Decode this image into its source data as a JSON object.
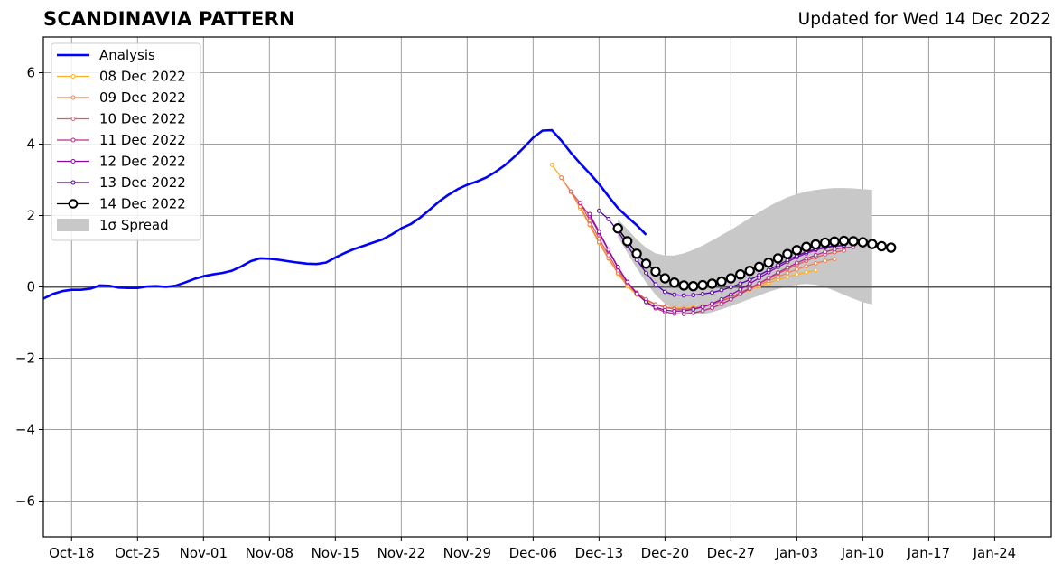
{
  "header": {
    "title": "SCANDINAVIA PATTERN",
    "updated": "Updated for Wed 14 Dec 2022"
  },
  "chart_data": {
    "type": "line",
    "title": "SCANDINAVIA PATTERN",
    "xlabel": "",
    "ylabel": "",
    "ylim": [
      -7,
      7
    ],
    "xlim": [
      "2022-10-15",
      "2023-01-30"
    ],
    "grid": true,
    "legend_position": "top-left",
    "y_ticks": [
      -6,
      -4,
      -2,
      0,
      2,
      4,
      6
    ],
    "y_tick_labels": [
      "−6",
      "−4",
      "−2",
      "0",
      "2",
      "4",
      "6"
    ],
    "x_ticks": [
      "2022-10-18",
      "2022-10-25",
      "2022-11-01",
      "2022-11-08",
      "2022-11-15",
      "2022-11-22",
      "2022-11-29",
      "2022-12-06",
      "2022-12-13",
      "2022-12-20",
      "2022-12-27",
      "2023-01-03",
      "2023-01-10",
      "2023-01-17",
      "2023-01-24"
    ],
    "x_tick_labels": [
      "Oct-18",
      "Oct-25",
      "Nov-01",
      "Nov-08",
      "Nov-15",
      "Nov-22",
      "Nov-29",
      "Dec-06",
      "Dec-13",
      "Dec-20",
      "Dec-27",
      "Jan-03",
      "Jan-10",
      "Jan-17",
      "Jan-24"
    ],
    "analysis": {
      "name": "Analysis",
      "color": "#0000ff",
      "start_date": "2022-10-15",
      "end_date": "2022-12-14",
      "values": [
        -0.33,
        -0.2,
        -0.12,
        -0.08,
        -0.08,
        -0.05,
        0.04,
        0.03,
        -0.02,
        -0.03,
        -0.03,
        0.01,
        0.02,
        0.0,
        0.03,
        0.12,
        0.22,
        0.3,
        0.35,
        0.39,
        0.45,
        0.57,
        0.72,
        0.8,
        0.79,
        0.76,
        0.72,
        0.68,
        0.65,
        0.64,
        0.68,
        0.82,
        0.95,
        1.06,
        1.15,
        1.24,
        1.33,
        1.47,
        1.64,
        1.76,
        1.94,
        2.16,
        2.39,
        2.58,
        2.74,
        2.86,
        2.95,
        3.06,
        3.22,
        3.41,
        3.64,
        3.9,
        4.18,
        4.38,
        4.39,
        4.1,
        3.76,
        3.46,
        3.18,
        2.88,
        2.54,
        2.21,
        1.96,
        1.73,
        1.46
      ]
    },
    "forecasts": [
      {
        "name": "08 Dec 2022",
        "color": "#fcae26",
        "start_date": "2022-12-08",
        "values": [
          3.42,
          3.06,
          2.66,
          2.2,
          1.73,
          1.23,
          0.79,
          0.37,
          0.02,
          -0.22,
          -0.38,
          -0.5,
          -0.56,
          -0.59,
          -0.6,
          -0.58,
          -0.54,
          -0.48,
          -0.39,
          -0.28,
          -0.18,
          -0.08,
          0.02,
          0.11,
          0.2,
          0.28,
          0.35,
          0.41,
          0.47
        ]
      },
      {
        "name": "09 Dec 2022",
        "color": "#f1814e",
        "start_date": "2022-12-09",
        "values": [
          3.06,
          2.67,
          2.25,
          1.75,
          1.26,
          0.81,
          0.39,
          0.07,
          -0.19,
          -0.36,
          -0.49,
          -0.57,
          -0.61,
          -0.62,
          -0.6,
          -0.55,
          -0.48,
          -0.39,
          -0.28,
          -0.17,
          -0.06,
          0.06,
          0.17,
          0.28,
          0.39,
          0.49,
          0.58,
          0.66,
          0.73,
          0.78
        ]
      },
      {
        "name": "10 Dec 2022",
        "color": "#db5c68",
        "start_date": "2022-12-10",
        "values": [
          2.67,
          2.35,
          1.86,
          1.35,
          0.89,
          0.46,
          0.11,
          -0.16,
          -0.35,
          -0.49,
          -0.58,
          -0.62,
          -0.63,
          -0.61,
          -0.56,
          -0.49,
          -0.4,
          -0.29,
          -0.16,
          -0.03,
          0.1,
          0.23,
          0.37,
          0.5,
          0.62,
          0.73,
          0.83,
          0.91,
          0.97,
          1.02
        ]
      },
      {
        "name": "11 Dec 2022",
        "color": "#b42e8d",
        "start_date": "2022-12-11",
        "values": [
          2.35,
          1.99,
          1.51,
          1.01,
          0.54,
          0.14,
          -0.18,
          -0.43,
          -0.6,
          -0.7,
          -0.75,
          -0.76,
          -0.73,
          -0.67,
          -0.59,
          -0.48,
          -0.35,
          -0.2,
          -0.05,
          0.1,
          0.25,
          0.4,
          0.54,
          0.67,
          0.79,
          0.89,
          0.98,
          1.05,
          1.1,
          1.12
        ]
      },
      {
        "name": "12 Dec 2022",
        "color": "#8b0aa5",
        "start_date": "2022-12-12",
        "values": [
          2.04,
          1.54,
          1.04,
          0.56,
          0.14,
          -0.19,
          -0.42,
          -0.57,
          -0.65,
          -0.68,
          -0.67,
          -0.63,
          -0.56,
          -0.47,
          -0.35,
          -0.22,
          -0.07,
          0.09,
          0.25,
          0.41,
          0.56,
          0.7,
          0.83,
          0.94,
          1.03,
          1.1,
          1.14,
          1.16
        ]
      },
      {
        "name": "13 Dec 2022",
        "color": "#5402a3",
        "start_date": "2022-12-13",
        "values": [
          2.13,
          1.9,
          1.56,
          1.16,
          0.76,
          0.39,
          0.07,
          -0.14,
          -0.22,
          -0.24,
          -0.23,
          -0.2,
          -0.16,
          -0.09,
          -0.01,
          0.09,
          0.2,
          0.33,
          0.47,
          0.61,
          0.75,
          0.87,
          0.98,
          1.06,
          1.12,
          1.15,
          1.16
        ]
      }
    ],
    "latest": {
      "name": "14 Dec 2022",
      "color": "#000000",
      "start_date": "2022-12-15",
      "values": [
        1.64,
        1.28,
        0.93,
        0.65,
        0.43,
        0.24,
        0.12,
        0.04,
        0.02,
        0.05,
        0.09,
        0.15,
        0.24,
        0.35,
        0.45,
        0.56,
        0.68,
        0.8,
        0.92,
        1.03,
        1.12,
        1.19,
        1.24,
        1.27,
        1.29,
        1.28,
        1.25,
        1.2,
        1.14,
        1.1
      ]
    },
    "spread": {
      "name": "1σ Spread",
      "color": "#c8c8c8",
      "start_date": "2022-12-15",
      "upper": [
        1.9,
        1.62,
        1.33,
        1.1,
        0.94,
        0.88,
        0.88,
        0.94,
        1.04,
        1.16,
        1.3,
        1.45,
        1.6,
        1.76,
        1.93,
        2.1,
        2.25,
        2.39,
        2.51,
        2.6,
        2.67,
        2.72,
        2.75,
        2.77,
        2.77,
        2.76,
        2.74,
        2.72
      ],
      "lower": [
        1.4,
        0.96,
        0.52,
        0.12,
        -0.22,
        -0.47,
        -0.64,
        -0.74,
        -0.78,
        -0.77,
        -0.71,
        -0.63,
        -0.54,
        -0.44,
        -0.34,
        -0.24,
        -0.14,
        -0.06,
        0.01,
        0.06,
        0.08,
        0.06,
        -0.01,
        -0.11,
        -0.22,
        -0.33,
        -0.43,
        -0.49
      ]
    }
  }
}
